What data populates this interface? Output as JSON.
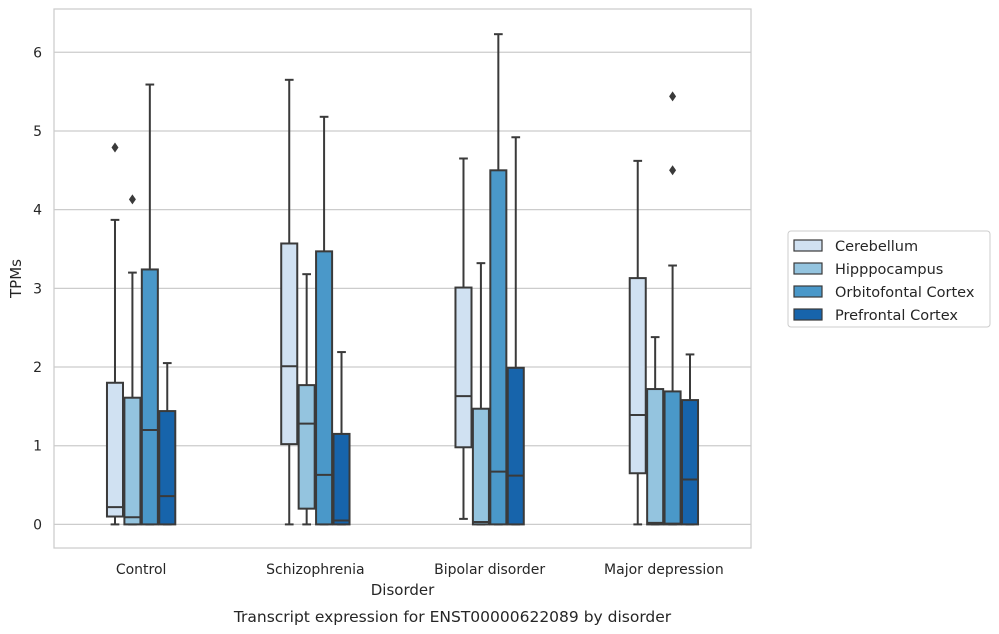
{
  "chart_data": {
    "type": "box",
    "caption": "Transcript expression for ENST00000622089 by disorder",
    "xlabel": "Disorder",
    "ylabel": "TPMs",
    "ylim": [
      -0.3,
      6.55
    ],
    "yticks": [
      "0",
      "1",
      "2",
      "3",
      "4",
      "5",
      "6"
    ],
    "grid": "horizontal",
    "legend_position": "right",
    "categories": [
      "Control",
      "Schizophrenia",
      "Bipolar disorder",
      "Major depression"
    ],
    "series": [
      {
        "name": "Cerebellum",
        "color": "#d0e1f2",
        "boxes": [
          {
            "whislo": 0.0,
            "q1": 0.1,
            "med": 0.22,
            "q3": 1.8,
            "whishi": 3.87,
            "fliers": [
              4.79
            ]
          },
          {
            "whislo": 0.0,
            "q1": 1.02,
            "med": 2.01,
            "q3": 3.57,
            "whishi": 5.65,
            "fliers": []
          },
          {
            "whislo": 0.07,
            "q1": 0.98,
            "med": 1.63,
            "q3": 3.01,
            "whishi": 4.65,
            "fliers": []
          },
          {
            "whislo": 0.0,
            "q1": 0.65,
            "med": 1.39,
            "q3": 3.13,
            "whishi": 4.62,
            "fliers": []
          }
        ]
      },
      {
        "name": "Hipppocampus",
        "color": "#94c4df",
        "boxes": [
          {
            "whislo": 0.0,
            "q1": 0.0,
            "med": 0.09,
            "q3": 1.61,
            "whishi": 3.2,
            "fliers": [
              4.13
            ]
          },
          {
            "whislo": 0.0,
            "q1": 0.2,
            "med": 1.28,
            "q3": 1.77,
            "whishi": 3.18,
            "fliers": []
          },
          {
            "whislo": 0.0,
            "q1": 0.0,
            "med": 0.03,
            "q3": 1.47,
            "whishi": 3.32,
            "fliers": []
          },
          {
            "whislo": 0.0,
            "q1": 0.0,
            "med": 0.02,
            "q3": 1.72,
            "whishi": 2.38,
            "fliers": []
          }
        ]
      },
      {
        "name": "Orbitofontal Cortex",
        "color": "#4a98c9",
        "boxes": [
          {
            "whislo": 0.0,
            "q1": 0.0,
            "med": 1.2,
            "q3": 3.24,
            "whishi": 5.59,
            "fliers": []
          },
          {
            "whislo": 0.0,
            "q1": 0.0,
            "med": 0.63,
            "q3": 3.47,
            "whishi": 5.18,
            "fliers": []
          },
          {
            "whislo": 0.0,
            "q1": 0.0,
            "med": 0.67,
            "q3": 4.5,
            "whishi": 6.23,
            "fliers": []
          },
          {
            "whislo": 0.0,
            "q1": 0.0,
            "med": 0.01,
            "q3": 1.69,
            "whishi": 3.29,
            "fliers": [
              4.5,
              5.44
            ]
          }
        ]
      },
      {
        "name": "Prefrontal Cortex",
        "color": "#1764ab",
        "boxes": [
          {
            "whislo": 0.0,
            "q1": 0.0,
            "med": 0.36,
            "q3": 1.44,
            "whishi": 2.05,
            "fliers": []
          },
          {
            "whislo": 0.0,
            "q1": 0.0,
            "med": 0.05,
            "q3": 1.15,
            "whishi": 2.19,
            "fliers": []
          },
          {
            "whislo": 0.0,
            "q1": 0.0,
            "med": 0.62,
            "q3": 1.99,
            "whishi": 4.92,
            "fliers": []
          },
          {
            "whislo": 0.0,
            "q1": 0.0,
            "med": 0.57,
            "q3": 1.58,
            "whishi": 2.16,
            "fliers": []
          }
        ]
      }
    ]
  }
}
